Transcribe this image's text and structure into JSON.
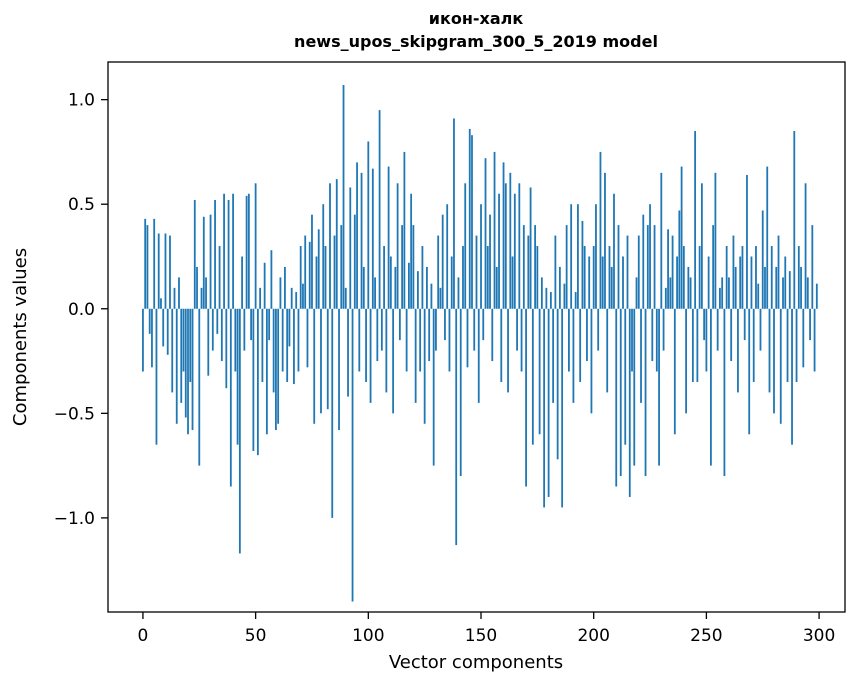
{
  "chart_data": {
    "type": "bar",
    "title": "икон-халк",
    "subtitle": "news_upos_skipgram_300_5_2019 model",
    "xlabel": "Vector components",
    "ylabel": "Components values",
    "n_components": 300,
    "bar_color": "#1f77b4",
    "grid": false,
    "legend": "none",
    "xlim": [
      -15.5,
      311.5
    ],
    "ylim": [
      -1.45,
      1.18
    ],
    "xticks": [
      0,
      50,
      100,
      150,
      200,
      250,
      300
    ],
    "ytick_values": [
      -1.0,
      -0.5,
      0.0,
      0.5,
      1.0
    ],
    "ytick_labels": [
      "−1.0",
      "−0.5",
      "0.0",
      "0.5",
      "1.0"
    ],
    "values": [
      -0.3,
      0.43,
      0.4,
      -0.12,
      -0.28,
      0.43,
      -0.65,
      0.36,
      0.05,
      -0.18,
      0.36,
      -0.22,
      0.35,
      -0.4,
      0.1,
      -0.55,
      0.15,
      -0.45,
      -0.3,
      -0.52,
      -0.6,
      -0.35,
      -0.58,
      0.52,
      0.2,
      -0.75,
      0.1,
      0.44,
      0.15,
      -0.32,
      0.45,
      -0.2,
      0.52,
      -0.12,
      0.3,
      -0.25,
      0.55,
      -0.38,
      0.52,
      -0.85,
      0.55,
      -0.3,
      -0.65,
      -1.17,
      0.25,
      -0.2,
      0.54,
      0.55,
      -0.15,
      -0.68,
      0.6,
      -0.7,
      0.1,
      -0.35,
      0.22,
      -0.6,
      -0.15,
      0.28,
      -0.4,
      -0.58,
      -0.55,
      0.15,
      -0.3,
      0.2,
      -0.35,
      -0.18,
      0.1,
      -0.36,
      0.08,
      -0.3,
      0.3,
      0.12,
      0.35,
      -0.28,
      0.32,
      0.45,
      -0.55,
      0.25,
      0.38,
      -0.5,
      0.5,
      0.3,
      -0.48,
      0.6,
      -1.0,
      0.35,
      0.62,
      -0.58,
      0.4,
      1.07,
      0.1,
      -0.42,
      0.58,
      -1.4,
      0.45,
      0.7,
      -0.3,
      0.65,
      0.2,
      -0.35,
      0.8,
      -0.45,
      0.67,
      0.15,
      -0.25,
      0.95,
      -0.2,
      0.3,
      -0.4,
      0.68,
      0.25,
      -0.5,
      0.2,
      0.6,
      -0.15,
      0.4,
      0.75,
      -0.3,
      0.22,
      0.55,
      0.4,
      -0.45,
      0.18,
      -0.3,
      0.3,
      -0.55,
      0.2,
      -0.25,
      0.12,
      -0.75,
      -0.2,
      0.35,
      0.1,
      0.45,
      -0.15,
      0.5,
      -0.3,
      0.25,
      0.91,
      -1.13,
      0.15,
      -0.8,
      0.3,
      0.6,
      -0.28,
      0.86,
      0.83,
      -0.2,
      0.35,
      -0.45,
      0.5,
      -0.15,
      0.72,
      0.3,
      0.45,
      -0.25,
      0.75,
      0.2,
      0.55,
      -0.35,
      0.7,
      0.6,
      -0.4,
      0.65,
      0.25,
      0.55,
      -0.2,
      0.6,
      -0.3,
      0.4,
      -0.85,
      0.35,
      0.58,
      -0.65,
      0.4,
      0.3,
      -0.6,
      0.15,
      -0.95,
      0.1,
      -0.9,
      0.08,
      -0.45,
      0.35,
      -0.72,
      0.2,
      -0.95,
      0.12,
      0.4,
      -0.3,
      0.5,
      -0.45,
      0.08,
      0.5,
      -0.35,
      0.42,
      0.3,
      -0.25,
      0.25,
      -0.5,
      0.3,
      0.5,
      -0.2,
      0.75,
      0.25,
      0.65,
      -0.4,
      0.3,
      0.2,
      0.55,
      -0.85,
      0.4,
      -0.8,
      0.25,
      -0.65,
      0.35,
      -0.9,
      -0.3,
      -0.75,
      0.15,
      0.35,
      -0.45,
      0.45,
      -0.8,
      0.4,
      0.5,
      -0.25,
      0.4,
      -0.3,
      -0.75,
      0.65,
      -0.2,
      0.1,
      0.38,
      0.15,
      0.35,
      -0.6,
      0.25,
      0.47,
      0.68,
      0.3,
      -0.5,
      0.2,
      0.15,
      -0.35,
      0.85,
      -0.35,
      0.3,
      0.6,
      -0.15,
      -0.3,
      0.25,
      -0.75,
      0.4,
      0.65,
      -0.2,
      0.1,
      0.15,
      -0.8,
      0.3,
      0.15,
      -0.25,
      0.35,
      0.2,
      -0.4,
      0.25,
      0.3,
      -0.15,
      0.64,
      -0.6,
      0.25,
      -0.35,
      0.3,
      0.12,
      -0.2,
      0.47,
      0.2,
      0.68,
      -0.4,
      0.3,
      -0.5,
      0.2,
      0.35,
      -0.55,
      0.15,
      0.25,
      -0.35,
      0.18,
      -0.65,
      0.85,
      -0.35,
      0.3,
      0.2,
      -0.28,
      0.6,
      0.15,
      -0.15,
      0.4,
      -0.3,
      0.12
    ]
  }
}
